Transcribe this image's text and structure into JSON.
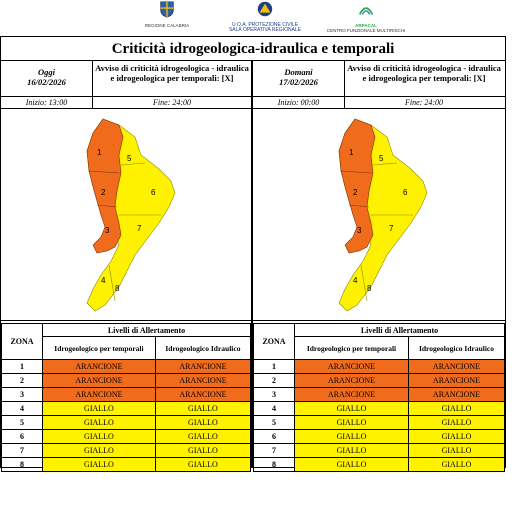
{
  "header": {
    "calabria_caption": "REGIONE CALABRIA",
    "prot_line1": "U.O.A. PROTEZIONE CIVILE",
    "prot_line2": "SALA OPERATIVA REGIONALE",
    "arpacal_name": "ARPACAL",
    "arpacal_sub": "CENTRO FUNZIONALE MULTIRISCHI"
  },
  "title": "Criticità idrogeologica-idraulica e temporali",
  "days": [
    {
      "label": "Oggi",
      "date": "16/02/2026",
      "avviso": "Avviso di criticità idrogeologica - idraulica e idrogeologica per temporali: [X]",
      "start": "Inizio: 13:00",
      "end": "Fine: 24:00"
    },
    {
      "label": "Domani",
      "date": "17/02/2026",
      "avviso": "Avviso di criticità idrogeologica - idraulica e idrogeologica per temporali: [X]",
      "start": "Inizio: 00:00",
      "end": "Fine: 24:00"
    }
  ],
  "table": {
    "zona_header": "ZONA",
    "group_header": "Livelli di Allertamento",
    "col1": "Idrogeologico per temporali",
    "col2": "Idrogeologico Idraulico"
  },
  "zones": [
    {
      "num": "1",
      "a": "ARANCIONE",
      "b": "ARANCIONE"
    },
    {
      "num": "2",
      "a": "ARANCIONE",
      "b": "ARANCIONE"
    },
    {
      "num": "3",
      "a": "ARANCIONE",
      "b": "ARANCIONE"
    },
    {
      "num": "4",
      "a": "GIALLO",
      "b": "GIALLO"
    },
    {
      "num": "5",
      "a": "GIALLO",
      "b": "GIALLO"
    },
    {
      "num": "6",
      "a": "GIALLO",
      "b": "GIALLO"
    },
    {
      "num": "7",
      "a": "GIALLO",
      "b": "GIALLO"
    },
    {
      "num": "8",
      "a": "GIALLO",
      "b": "GIALLO"
    }
  ],
  "map_labels": [
    "1",
    "2",
    "3",
    "4",
    "5",
    "6",
    "7",
    "8"
  ],
  "colors": {
    "arancione": "#f06b1c",
    "giallo": "#fff200"
  }
}
